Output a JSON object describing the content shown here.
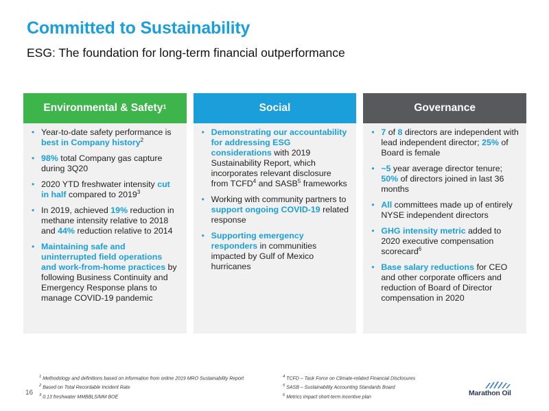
{
  "header": {
    "title": "Committed to Sustainability",
    "subtitle": "ESG: The foundation for long-term financial outperformance"
  },
  "columns": [
    {
      "heading": "Environmental & Safety",
      "heading_sup": "1",
      "color": "#3db54a",
      "bullets": [
        {
          "t1": "Year-to-date safety performance is ",
          "h1": "best in Company history",
          "sup": "2"
        },
        {
          "h1": "98%",
          "t1": " total Company gas capture during 3Q20"
        },
        {
          "t1": "2020 YTD freshwater intensity ",
          "h1": "cut in half",
          "t2": " compared to 2019",
          "sup": "3"
        },
        {
          "t1": "In 2019, achieved ",
          "h1": "19%",
          "t2": " reduction in methane intensity relative to 2018 and ",
          "h2": "44%",
          "t3": " reduction relative to 2014"
        },
        {
          "h1": "Maintaining safe and uninterrupted field operations and work-from-home practices",
          "t1": " by following Business Continuity and Emergency Response plans to manage COVID-19 pandemic"
        }
      ]
    },
    {
      "heading": "Social",
      "color": "#1a9fdb",
      "bullets": [
        {
          "h1": "Demonstrating our accountability for addressing ESG considerations",
          "t1": " with 2019 Sustainability Report, which incorporates relevant disclosure from TCFD",
          "sup1": "4",
          "t2": " and SASB",
          "sup2": "5",
          "t3": " frameworks"
        },
        {
          "t1": "Working with community partners to ",
          "h1": "support ongoing COVID-19",
          "t2": " related response"
        },
        {
          "h1": "Supporting emergency responders",
          "t1": " in communities impacted by Gulf of Mexico hurricanes"
        }
      ]
    },
    {
      "heading": "Governance",
      "color": "#58595b",
      "bullets": [
        {
          "h1": "7",
          "t1": " of ",
          "h2": "8",
          "t2": " directors are independent with lead independent director; ",
          "h3": "25%",
          "t3": " of Board is female"
        },
        {
          "h1": "~5",
          "t1": " year average director tenure; ",
          "h2": "50%",
          "t2": " of directors joined in last 36 months"
        },
        {
          "h1": "All",
          "t1": " committees made up of entirely NYSE independent directors"
        },
        {
          "h1": "GHG intensity metric",
          "t1": " added to 2020 executive compensation scorecard",
          "sup": "6"
        },
        {
          "h1": "Base salary reductions",
          "t1": " for CEO and other corporate officers and reduction of Board of Director compensation in 2020"
        }
      ]
    }
  ],
  "footnotes": {
    "left": [
      {
        "num": "1",
        "text": "Methodology and definitions based on information from online 2019 MRO Sustainability Report"
      },
      {
        "num": "2",
        "text": "Based on Total Recordable Incident Rate"
      },
      {
        "num": "3",
        "text": "0.13 freshwater MMBBLS/MM BOE"
      }
    ],
    "right": [
      {
        "num": "4",
        "text": "TCFD – Task Force on Climate-related Financial Disclosures"
      },
      {
        "num": "5",
        "text": "SASB – Sustainability Accounting Standards Board"
      },
      {
        "num": "6",
        "text": "Metrics impact short-term incentive plan"
      }
    ]
  },
  "page_number": "16",
  "logo": {
    "text": "Marathon Oil",
    "icon": "marathon-oil-logo"
  }
}
